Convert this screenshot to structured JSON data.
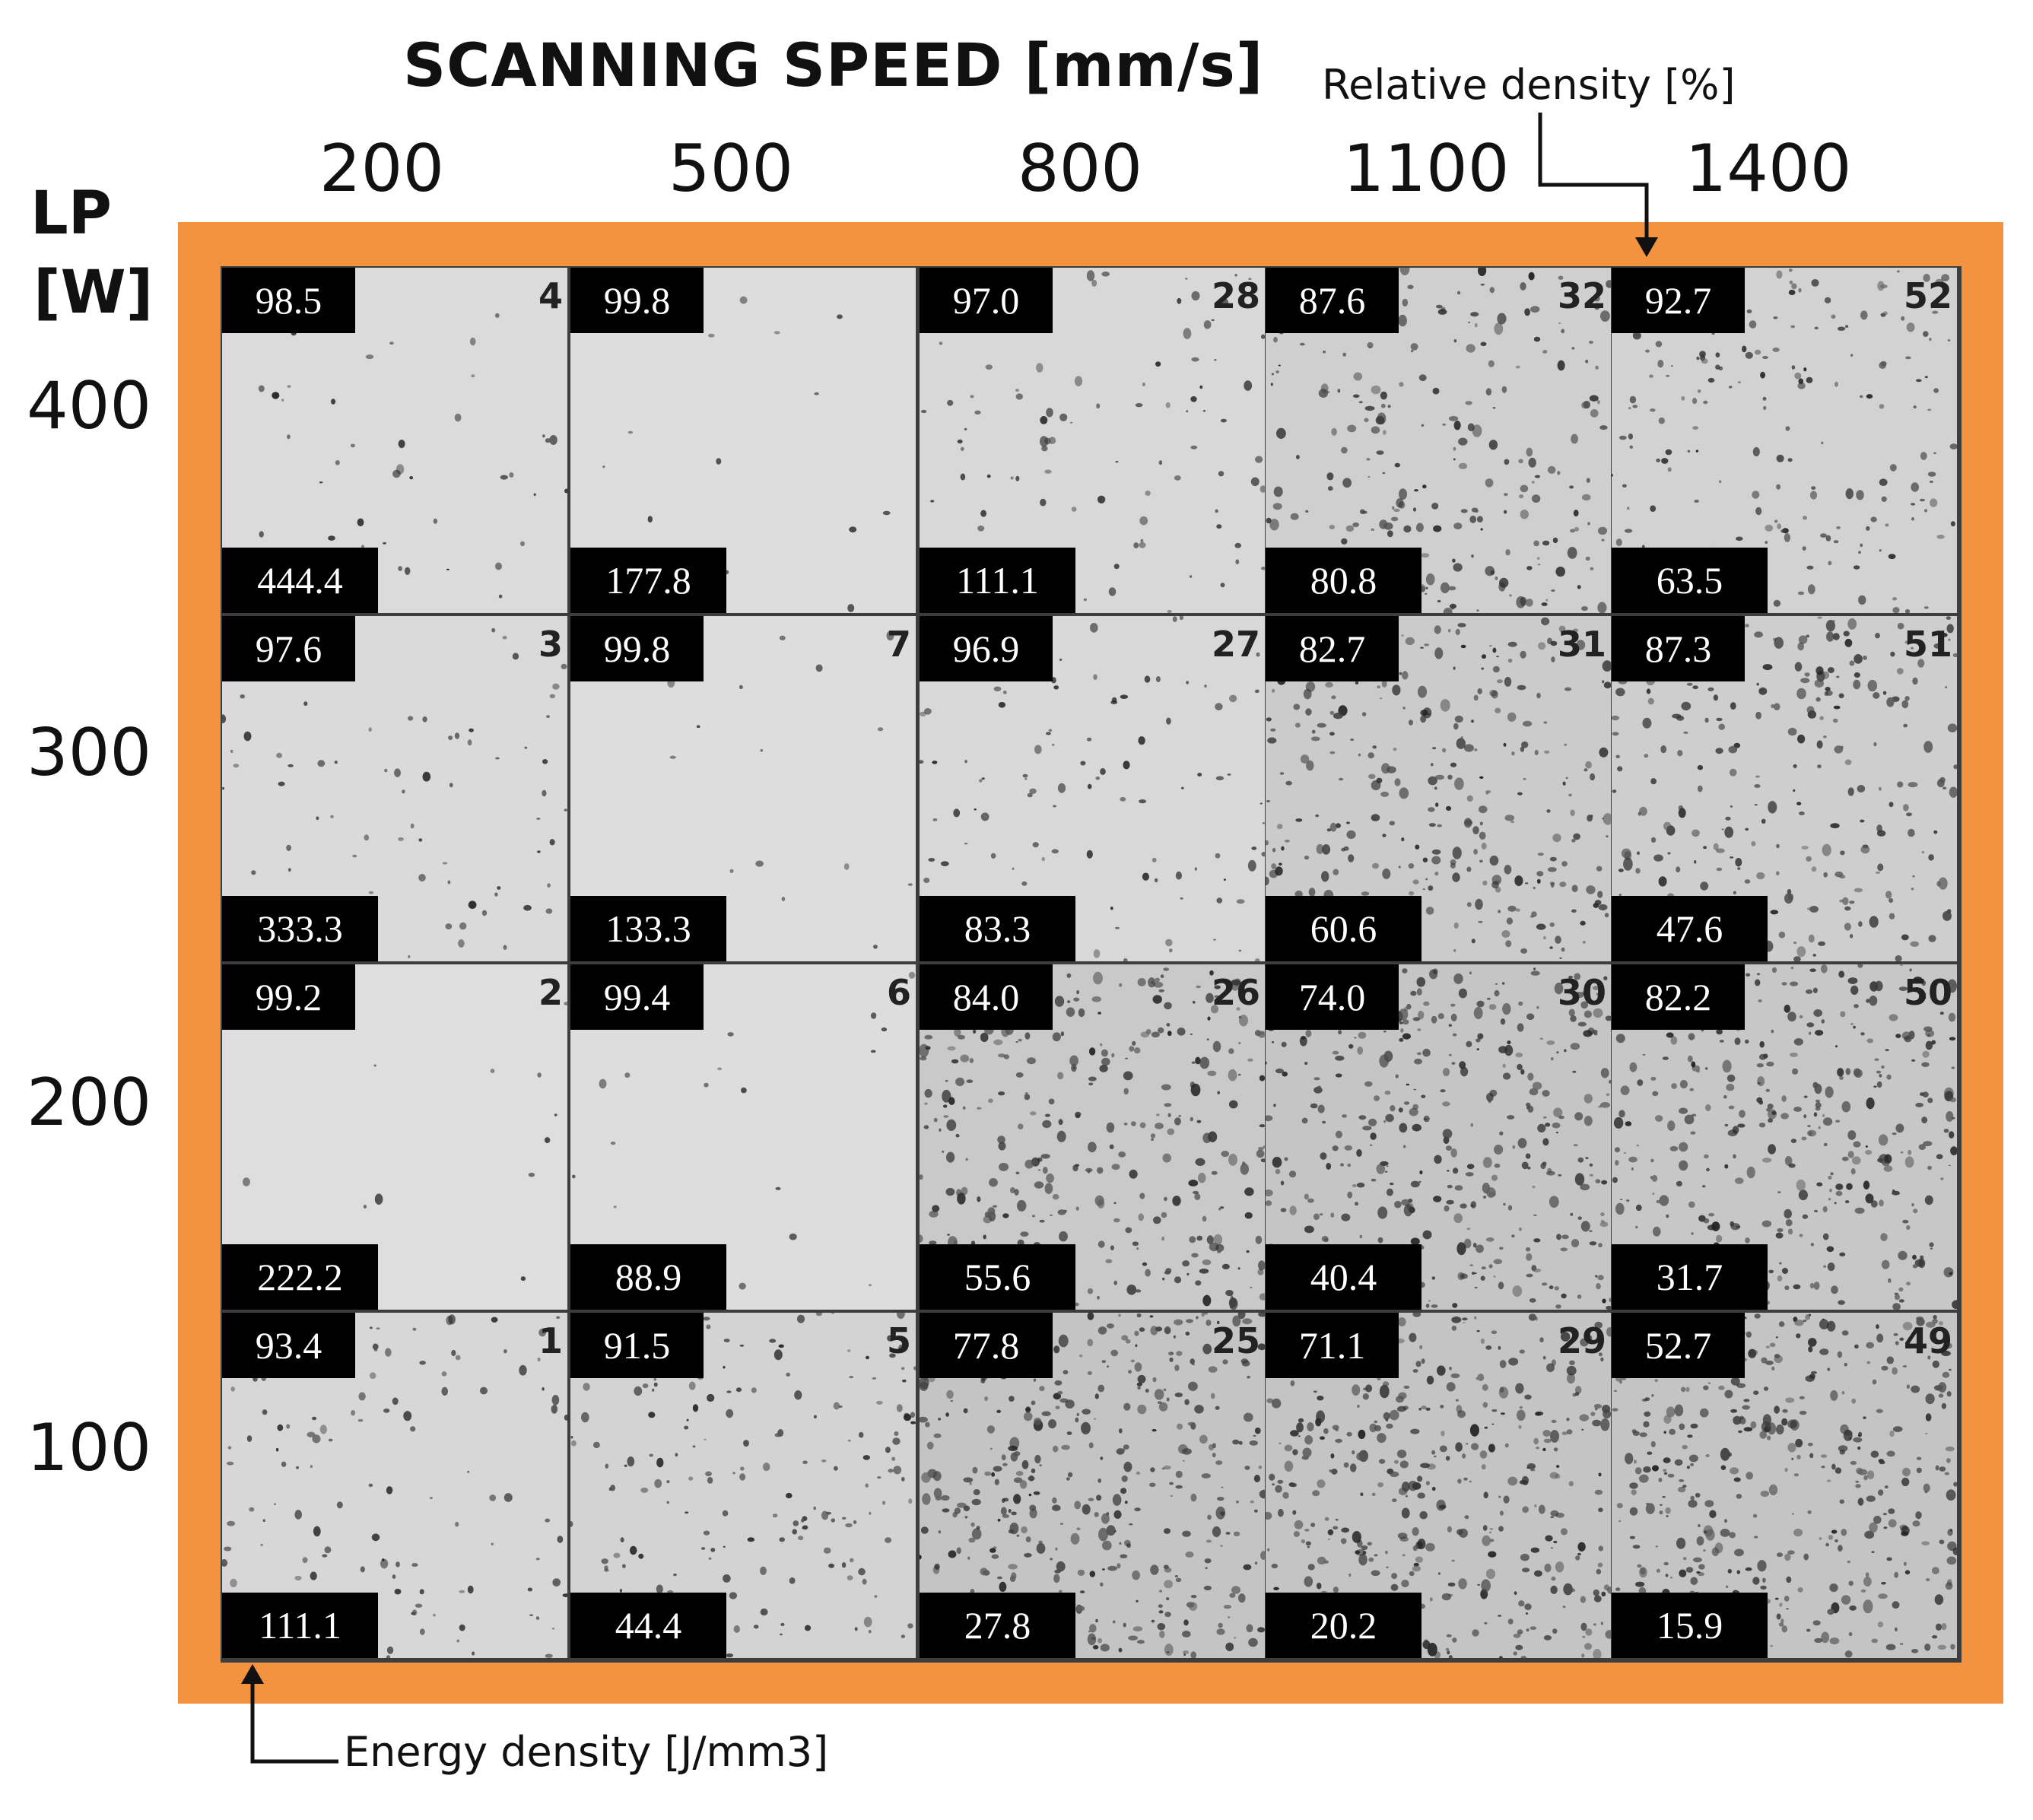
{
  "title": "SCANNING SPEED [mm/s]",
  "relative_density_label": "Relative density [%]",
  "energy_density_label": "Energy density [J/mm3]",
  "y_axis": {
    "label_line1": "LP",
    "label_line2": "[W]"
  },
  "scanning_speeds": [
    "200",
    "500",
    "800",
    "1100",
    "1400"
  ],
  "laser_powers": [
    "400",
    "300",
    "200",
    "100"
  ],
  "colors": {
    "frame": "#f3923f",
    "label_box": "#000000",
    "label_text": "#ffffff"
  },
  "rows": [
    {
      "power": "400",
      "cells": [
        {
          "relative_density": "98.5",
          "energy_density": "444.4",
          "sample": "4",
          "porosity": 0.1
        },
        {
          "relative_density": "99.8",
          "energy_density": "177.8",
          "sample": "",
          "porosity": 0.02
        },
        {
          "relative_density": "97.0",
          "energy_density": "111.1",
          "sample": "28",
          "porosity": 0.22
        },
        {
          "relative_density": "87.6",
          "energy_density": "80.8",
          "sample": "32",
          "porosity": 0.58
        },
        {
          "relative_density": "92.7",
          "energy_density": "63.5",
          "sample": "52",
          "porosity": 0.45
        }
      ]
    },
    {
      "power": "300",
      "cells": [
        {
          "relative_density": "97.6",
          "energy_density": "333.3",
          "sample": "3",
          "porosity": 0.16
        },
        {
          "relative_density": "99.8",
          "energy_density": "133.3",
          "sample": "7",
          "porosity": 0.02
        },
        {
          "relative_density": "96.9",
          "energy_density": "83.3",
          "sample": "27",
          "porosity": 0.24
        },
        {
          "relative_density": "82.7",
          "energy_density": "60.6",
          "sample": "31",
          "porosity": 0.75
        },
        {
          "relative_density": "87.3",
          "energy_density": "47.6",
          "sample": "51",
          "porosity": 0.62
        }
      ]
    },
    {
      "power": "200",
      "cells": [
        {
          "relative_density": "99.2",
          "energy_density": "222.2",
          "sample": "2",
          "porosity": 0.01
        },
        {
          "relative_density": "99.4",
          "energy_density": "88.9",
          "sample": "6",
          "porosity": 0.03
        },
        {
          "relative_density": "84.0",
          "energy_density": "55.6",
          "sample": "26",
          "porosity": 0.8
        },
        {
          "relative_density": "74.0",
          "energy_density": "40.4",
          "sample": "30",
          "porosity": 0.95
        },
        {
          "relative_density": "82.2",
          "energy_density": "31.7",
          "sample": "50",
          "porosity": 0.88
        }
      ]
    },
    {
      "power": "100",
      "cells": [
        {
          "relative_density": "93.4",
          "energy_density": "111.1",
          "sample": "1",
          "porosity": 0.28
        },
        {
          "relative_density": "91.5",
          "energy_density": "44.4",
          "sample": "5",
          "porosity": 0.42
        },
        {
          "relative_density": "77.8",
          "energy_density": "27.8",
          "sample": "25",
          "porosity": 1.0
        },
        {
          "relative_density": "71.1",
          "energy_density": "20.2",
          "sample": "29",
          "porosity": 1.0
        },
        {
          "relative_density": "52.7",
          "energy_density": "15.9",
          "sample": "49",
          "porosity": 1.0
        }
      ]
    }
  ]
}
